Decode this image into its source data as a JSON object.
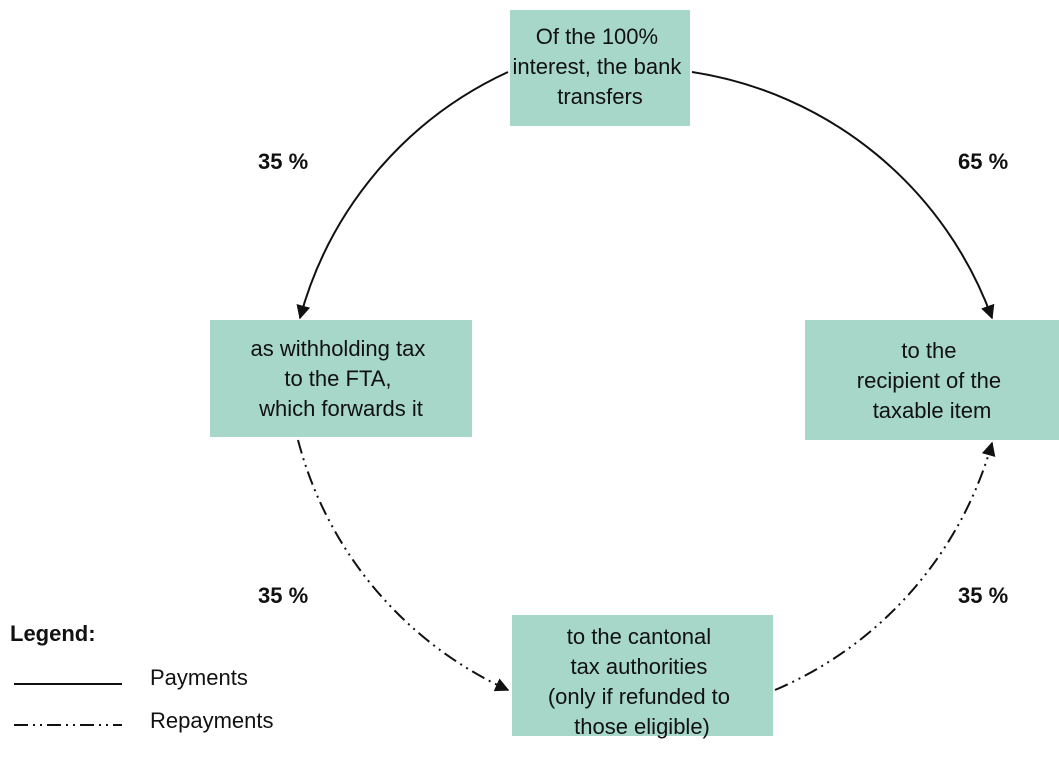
{
  "nodes": [
    {
      "lines": [
        "Of the 100%",
        "interest, the bank",
        "transfers"
      ]
    },
    {
      "lines": [
        "as withholding tax",
        "to the FTA,",
        "which forwards it"
      ]
    },
    {
      "lines": [
        "to the",
        "recipient of the",
        "taxable item"
      ]
    },
    {
      "lines": [
        "to the cantonal",
        "tax authorities",
        "(only if refunded to",
        "those eligible)"
      ]
    }
  ],
  "edges": [
    {
      "label": "35 %"
    },
    {
      "label": "65 %"
    },
    {
      "label": "35 %"
    },
    {
      "label": "35 %"
    }
  ],
  "legend": {
    "title": "Legend:",
    "items": [
      "Payments",
      "Repayments"
    ]
  }
}
